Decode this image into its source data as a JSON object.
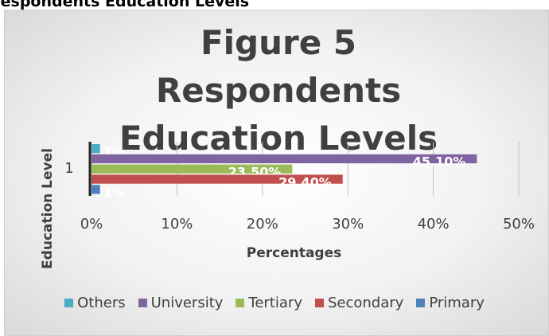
{
  "heading": "Respondents Education Levels",
  "chart_data": {
    "type": "bar",
    "orientation": "horizontal",
    "title": "Figure 5 Respondents Education Levels",
    "xlabel": "Percentages",
    "ylabel": "Education Level",
    "categories": [
      "1"
    ],
    "series": [
      {
        "name": "Others",
        "color": "#4bacc6",
        "values": [
          1
        ],
        "value_labels": [
          "1%"
        ]
      },
      {
        "name": "University",
        "color": "#8064a2",
        "values": [
          45.1
        ],
        "value_labels": [
          "45.10%"
        ]
      },
      {
        "name": "Tertiary",
        "color": "#9bbb59",
        "values": [
          23.5
        ],
        "value_labels": [
          "23.50%"
        ]
      },
      {
        "name": "Secondary",
        "color": "#c0504d",
        "values": [
          29.4
        ],
        "value_labels": [
          "29.40%"
        ]
      },
      {
        "name": "Primary",
        "color": "#4f81bd",
        "values": [
          1
        ],
        "value_labels": [
          "1%"
        ]
      }
    ],
    "xlim": [
      0,
      50
    ],
    "xticks": [
      {
        "value": 0,
        "label": "0%"
      },
      {
        "value": 10,
        "label": "10%"
      },
      {
        "value": 20,
        "label": "20%"
      },
      {
        "value": 30,
        "label": "30%"
      },
      {
        "value": 40,
        "label": "40%"
      },
      {
        "value": 50,
        "label": "50%"
      }
    ],
    "grid": true,
    "legend": "bottom"
  }
}
